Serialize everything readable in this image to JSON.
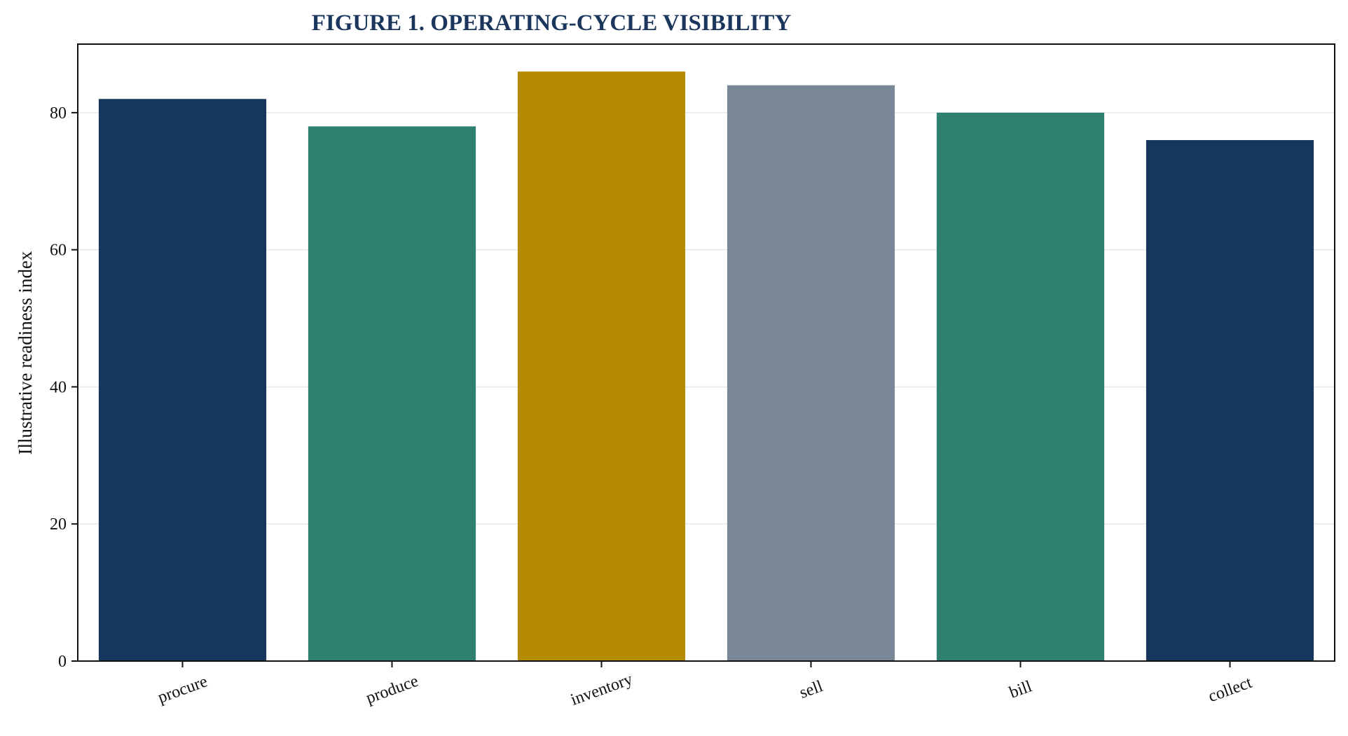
{
  "chart_data": {
    "type": "bar",
    "title": "FIGURE 1. OPERATING-CYCLE VISIBILITY",
    "xlabel": "",
    "ylabel": "Illustrative readiness index",
    "categories": [
      "procure",
      "produce",
      "inventory",
      "sell",
      "bill",
      "collect"
    ],
    "values": [
      82,
      78,
      86,
      84,
      80,
      76
    ],
    "colors": [
      "#17365d",
      "#2e806f",
      "#b38a00",
      "#7a8796",
      "#2e806f",
      "#17365d"
    ],
    "ylim": [
      0,
      90
    ],
    "yticks": [
      0,
      20,
      40,
      60,
      80
    ],
    "grid": "y"
  }
}
